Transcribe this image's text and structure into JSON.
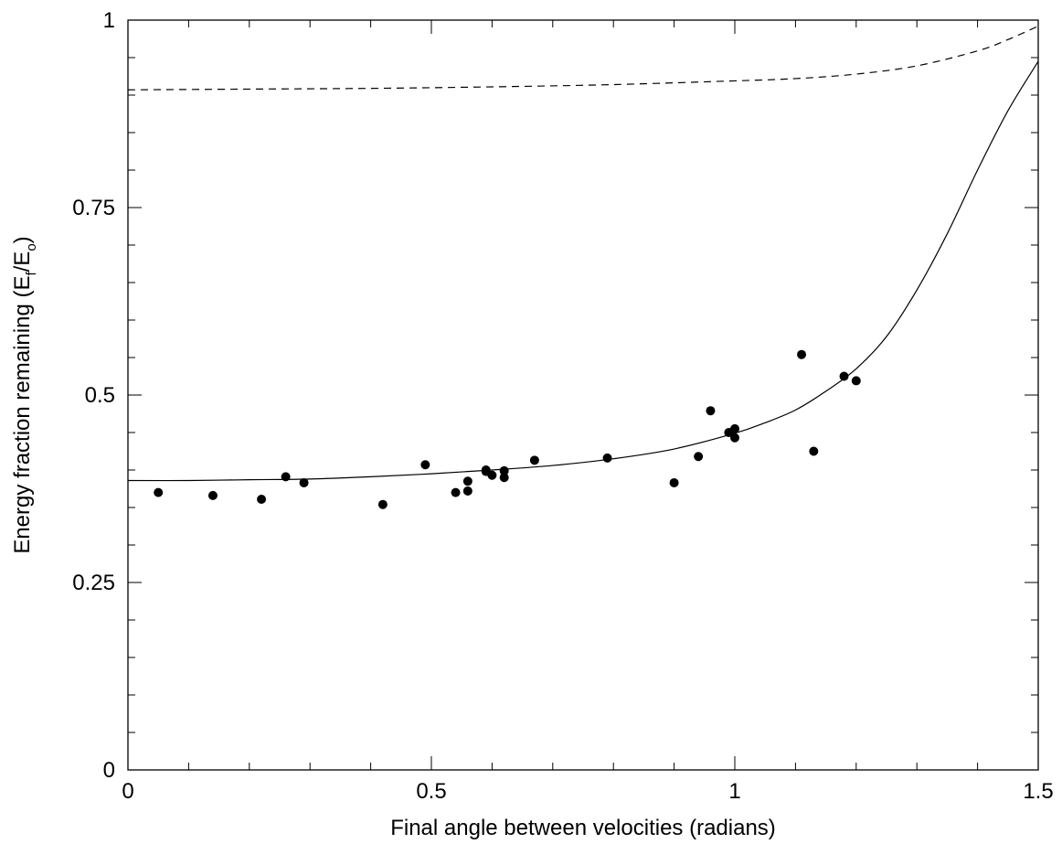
{
  "chart_data": {
    "type": "scatter",
    "title": "",
    "xlabel": "Final angle between velocities (radians)",
    "ylabel": {
      "text": "Energy fraction remaining (E",
      "sub1": "f",
      "mid": "/E",
      "sub2": "o",
      "end": ")"
    },
    "xlim": [
      0,
      1.5
    ],
    "ylim": [
      0,
      1
    ],
    "x_ticks": [
      {
        "value": 0,
        "label": "0"
      },
      {
        "value": 0.5,
        "label": "0.5"
      },
      {
        "value": 1,
        "label": "1"
      },
      {
        "value": 1.5,
        "label": "1.5"
      }
    ],
    "y_ticks": [
      {
        "value": 0,
        "label": "0"
      },
      {
        "value": 0.25,
        "label": "0.25"
      },
      {
        "value": 0.5,
        "label": "0.5"
      },
      {
        "value": 0.75,
        "label": "0.75"
      },
      {
        "value": 1,
        "label": "1"
      }
    ],
    "x_minor_step": 0.1,
    "y_minor_step": 0.05,
    "grid": false,
    "series": [
      {
        "kind": "points",
        "points": [
          [
            0.05,
            0.37
          ],
          [
            0.14,
            0.366
          ],
          [
            0.22,
            0.361
          ],
          [
            0.26,
            0.391
          ],
          [
            0.29,
            0.383
          ],
          [
            0.42,
            0.354
          ],
          [
            0.49,
            0.407
          ],
          [
            0.54,
            0.37
          ],
          [
            0.56,
            0.372
          ],
          [
            0.56,
            0.385
          ],
          [
            0.59,
            0.398
          ],
          [
            0.59,
            0.4
          ],
          [
            0.6,
            0.393
          ],
          [
            0.62,
            0.399
          ],
          [
            0.62,
            0.39
          ],
          [
            0.67,
            0.413
          ],
          [
            0.79,
            0.416
          ],
          [
            0.9,
            0.383
          ],
          [
            0.94,
            0.418
          ],
          [
            0.96,
            0.479
          ],
          [
            0.99,
            0.45
          ],
          [
            1.0,
            0.455
          ],
          [
            1.0,
            0.443
          ],
          [
            1.11,
            0.554
          ],
          [
            1.13,
            0.425
          ],
          [
            1.18,
            0.525
          ],
          [
            1.2,
            0.519
          ]
        ]
      },
      {
        "kind": "solid-line",
        "points": [
          [
            0.0,
            0.386
          ],
          [
            0.1,
            0.386
          ],
          [
            0.2,
            0.387
          ],
          [
            0.3,
            0.388
          ],
          [
            0.4,
            0.391
          ],
          [
            0.5,
            0.395
          ],
          [
            0.6,
            0.4
          ],
          [
            0.7,
            0.406
          ],
          [
            0.8,
            0.415
          ],
          [
            0.9,
            0.428
          ],
          [
            1.0,
            0.449
          ],
          [
            1.05,
            0.463
          ],
          [
            1.1,
            0.48
          ],
          [
            1.15,
            0.505
          ],
          [
            1.2,
            0.535
          ],
          [
            1.25,
            0.578
          ],
          [
            1.3,
            0.64
          ],
          [
            1.35,
            0.715
          ],
          [
            1.4,
            0.8
          ],
          [
            1.45,
            0.879
          ],
          [
            1.5,
            0.945
          ]
        ]
      },
      {
        "kind": "dashed-line",
        "points": [
          [
            0.0,
            0.907
          ],
          [
            0.2,
            0.908
          ],
          [
            0.4,
            0.909
          ],
          [
            0.6,
            0.911
          ],
          [
            0.8,
            0.914
          ],
          [
            1.0,
            0.919
          ],
          [
            1.1,
            0.922
          ],
          [
            1.2,
            0.928
          ],
          [
            1.3,
            0.939
          ],
          [
            1.4,
            0.959
          ],
          [
            1.45,
            0.974
          ],
          [
            1.5,
            0.992
          ]
        ]
      }
    ]
  }
}
